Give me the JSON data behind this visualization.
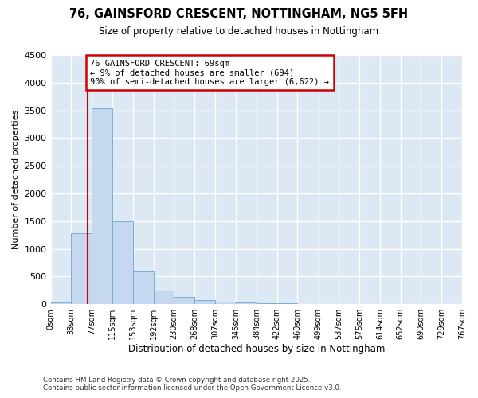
{
  "title_line1": "76, GAINSFORD CRESCENT, NOTTINGHAM, NG5 5FH",
  "title_line2": "Size of property relative to detached houses in Nottingham",
  "xlabel": "Distribution of detached houses by size in Nottingham",
  "ylabel": "Number of detached properties",
  "bar_color": "#c5d8f0",
  "bar_edge_color": "#7aadd4",
  "plot_bg_color": "#dce9f5",
  "fig_bg_color": "#ffffff",
  "grid_color": "#ffffff",
  "annotation_box_edge_color": "#cc0000",
  "annotation_line_color": "#cc0000",
  "property_value": 69,
  "annotation_text_line1": "76 GAINSFORD CRESCENT: 69sqm",
  "annotation_text_line2": "← 9% of detached houses are smaller (694)",
  "annotation_text_line3": "90% of semi-detached houses are larger (6,622) →",
  "bin_edges": [
    0,
    38,
    77,
    115,
    153,
    192,
    230,
    268,
    307,
    345,
    384,
    422,
    460,
    499,
    537,
    575,
    614,
    652,
    690,
    729,
    767
  ],
  "bin_counts": [
    30,
    1280,
    3530,
    1490,
    590,
    240,
    130,
    75,
    50,
    30,
    15,
    10,
    5,
    3,
    2,
    1,
    1,
    0,
    0,
    0
  ],
  "ylim": [
    0,
    4500
  ],
  "yticks": [
    0,
    500,
    1000,
    1500,
    2000,
    2500,
    3000,
    3500,
    4000,
    4500
  ],
  "footnote_line1": "Contains HM Land Registry data © Crown copyright and database right 2025.",
  "footnote_line2": "Contains public sector information licensed under the Open Government Licence v3.0."
}
